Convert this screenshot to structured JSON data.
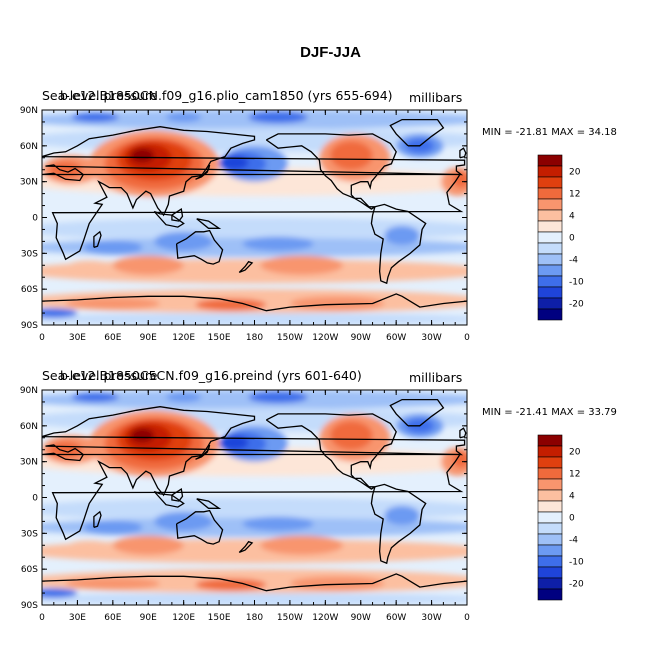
{
  "figure": {
    "title": "DJF-JJA"
  },
  "panels": [
    {
      "title_left": "Sea-level pressure",
      "title_case": "b.e12.B1850CN.f09_g16.plio_cam1850 (yrs 655-694)",
      "units": "millibars",
      "min_max": "MIN = -21.81 MAX =  34.18"
    },
    {
      "title_left": "Sea-level pressure",
      "title_case": "b.e12.B1850C5CN.f09_g16.preind (yrs 601-640)",
      "units": "millibars",
      "min_max": "MIN = -21.41 MAX =  33.79"
    }
  ],
  "axes": {
    "lat_labels": [
      "90N",
      "60N",
      "30N",
      "0",
      "30S",
      "60S",
      "90S"
    ],
    "lon_labels": [
      "0",
      "30E",
      "60E",
      "90E",
      "120E",
      "150E",
      "180",
      "150W",
      "120W",
      "90W",
      "60W",
      "30W",
      "0"
    ]
  },
  "colorbar": {
    "labels": [
      "20",
      "12",
      "4",
      "0",
      "-4",
      "-10",
      "-20"
    ],
    "colors": [
      "#8b0000",
      "#c41e00",
      "#e0400f",
      "#f06a3c",
      "#f8956e",
      "#fcbfa0",
      "#fde6d8",
      "#e4f0fd",
      "#c4dcfb",
      "#9ec0f7",
      "#6c9af2",
      "#3e6eea",
      "#1f44d9",
      "#0e1fa8",
      "#000080"
    ]
  }
}
